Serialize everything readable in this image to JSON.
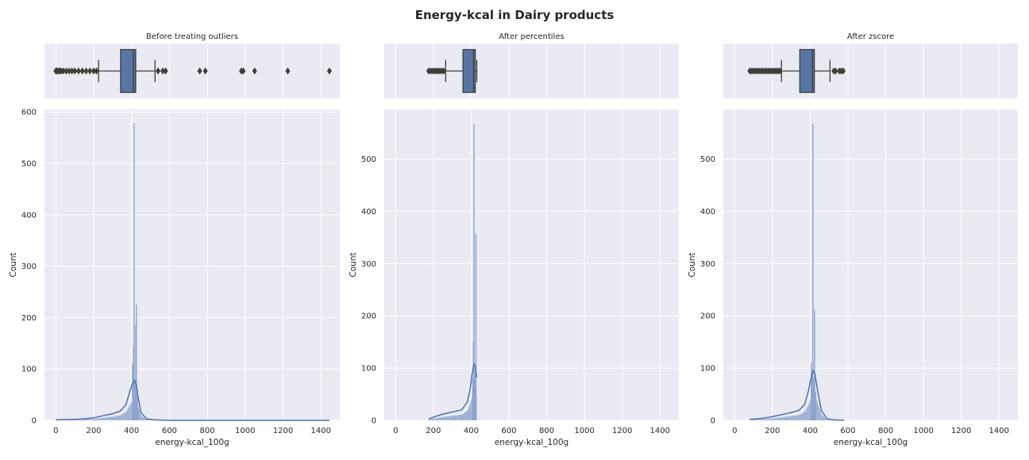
{
  "suptitle": "Energy-kcal in Dairy products",
  "style": {
    "panel_bg": "#eaeaf2",
    "grid": "#ffffff",
    "box_fill": "#5975a4",
    "box_edge": "#3d3d3d",
    "kde": "#4c72b0",
    "hist": "#8da4cd",
    "text": "#262626"
  },
  "chart_data": [
    {
      "type": "box+histogram",
      "title": "Before treating outliers",
      "xlabel": "energy-kcal_100g",
      "ylabel": "Count",
      "xlim": [
        -60,
        1500
      ],
      "xticks": [
        0,
        200,
        400,
        600,
        800,
        1000,
        1200,
        1400
      ],
      "ylim": [
        0,
        605
      ],
      "yticks": [
        0,
        100,
        200,
        300,
        400,
        500,
        600
      ],
      "box": {
        "q1": 342,
        "median": 410,
        "q3": 422,
        "whisker_low": 226,
        "whisker_high": 524,
        "outliers": [
          0,
          5,
          12,
          20,
          28,
          40,
          55,
          70,
          85,
          100,
          120,
          140,
          160,
          180,
          200,
          215,
          540,
          565,
          580,
          760,
          790,
          980,
          990,
          1050,
          1225,
          1445
        ]
      },
      "hist_spikes": [
        {
          "x": 405,
          "count": 110
        },
        {
          "x": 410,
          "count": 145
        },
        {
          "x": 413,
          "count": 578
        },
        {
          "x": 419,
          "count": 80
        },
        {
          "x": 422,
          "count": 185
        },
        {
          "x": 425,
          "count": 225
        },
        {
          "x": 430,
          "count": 60
        }
      ],
      "kde": {
        "x": [
          0,
          100,
          150,
          200,
          250,
          300,
          340,
          370,
          390,
          405,
          415,
          425,
          435,
          450,
          480,
          520,
          600,
          1445
        ],
        "y": [
          1,
          2,
          3,
          5,
          9,
          13,
          18,
          30,
          55,
          72,
          77,
          70,
          45,
          15,
          3,
          1,
          0,
          0
        ]
      }
    },
    {
      "type": "box+histogram",
      "title": "After percentiles",
      "xlabel": "energy-kcal_100g",
      "ylabel": "Count",
      "xlim": [
        -60,
        1500
      ],
      "xticks": [
        0,
        200,
        400,
        600,
        800,
        1000,
        1200,
        1400
      ],
      "ylim": [
        0,
        595
      ],
      "yticks": [
        0,
        100,
        200,
        300,
        400,
        500
      ],
      "box": {
        "q1": 357,
        "median": 413,
        "q3": 422,
        "whisker_low": 265,
        "whisker_high": 430,
        "outliers": [
          175,
          185,
          195,
          205,
          215,
          225,
          235,
          245,
          255
        ]
      },
      "hist_spikes": [
        {
          "x": 408,
          "count": 80
        },
        {
          "x": 412,
          "count": 150
        },
        {
          "x": 415,
          "count": 568
        },
        {
          "x": 420,
          "count": 95
        },
        {
          "x": 425,
          "count": 357
        }
      ],
      "kde": {
        "x": [
          175,
          200,
          250,
          300,
          350,
          380,
          395,
          405,
          415,
          422,
          430
        ],
        "y": [
          2,
          6,
          12,
          16,
          20,
          35,
          60,
          90,
          108,
          104,
          82
        ]
      }
    },
    {
      "type": "box+histogram",
      "title": "After zscore",
      "xlabel": "energy-kcal_100g",
      "ylabel": "Count",
      "xlim": [
        -60,
        1500
      ],
      "xticks": [
        0,
        200,
        400,
        600,
        800,
        1000,
        1200,
        1400
      ],
      "ylim": [
        0,
        595
      ],
      "yticks": [
        0,
        100,
        200,
        300,
        400,
        500
      ],
      "box": {
        "q1": 345,
        "median": 412,
        "q3": 422,
        "whisker_low": 248,
        "whisker_high": 505,
        "outliers": [
          80,
          90,
          100,
          110,
          120,
          130,
          140,
          150,
          160,
          170,
          180,
          190,
          200,
          210,
          220,
          230,
          240,
          525,
          535,
          555,
          565,
          575
        ]
      },
      "hist_spikes": [
        {
          "x": 405,
          "count": 110
        },
        {
          "x": 410,
          "count": 90
        },
        {
          "x": 414,
          "count": 568
        },
        {
          "x": 420,
          "count": 80
        },
        {
          "x": 423,
          "count": 212
        },
        {
          "x": 428,
          "count": 55
        }
      ],
      "kde": {
        "x": [
          80,
          150,
          200,
          250,
          300,
          340,
          370,
          390,
          405,
          415,
          425,
          440,
          460,
          490,
          520,
          580
        ],
        "y": [
          2,
          4,
          7,
          11,
          15,
          19,
          30,
          55,
          82,
          96,
          90,
          55,
          18,
          3,
          1,
          0
        ]
      }
    }
  ]
}
